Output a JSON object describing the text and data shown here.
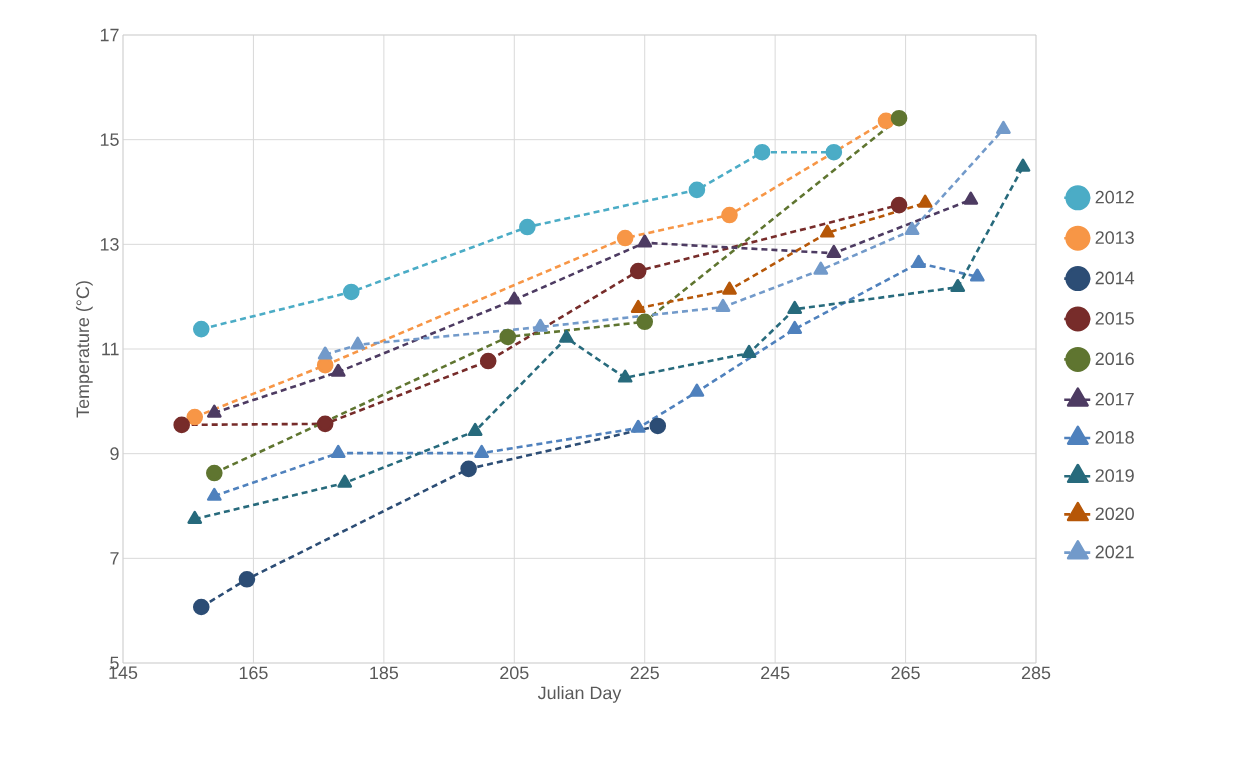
{
  "chart_data": {
    "type": "line",
    "xlabel": "Julian Day",
    "ylabel": "Temperature (°C)",
    "xlim": [
      145,
      285
    ],
    "xticks": [
      145,
      165,
      185,
      205,
      225,
      245,
      265,
      285
    ],
    "ylim": [
      5,
      17
    ],
    "yticks": [
      5,
      7,
      9,
      11,
      13,
      15,
      17
    ],
    "grid": true,
    "legend": "right",
    "line_style": "dashed",
    "series": [
      {
        "name": "2012",
        "color": "#4bacc6",
        "marker": "circle",
        "x": [
          157,
          180,
          207,
          233,
          243,
          254
        ],
        "values": [
          11.38,
          12.09,
          13.33,
          14.04,
          14.76,
          14.76
        ]
      },
      {
        "name": "2013",
        "color": "#f79646",
        "marker": "circle",
        "x": [
          156,
          176,
          222,
          238,
          262
        ],
        "values": [
          9.7,
          10.69,
          13.12,
          13.56,
          15.36
        ]
      },
      {
        "name": "2014",
        "color": "#2c4d75",
        "marker": "circle",
        "x": [
          157,
          164,
          198,
          227
        ],
        "values": [
          6.07,
          6.6,
          8.71,
          9.53
        ]
      },
      {
        "name": "2015",
        "color": "#772c2a",
        "marker": "circle",
        "x": [
          154,
          176,
          201,
          224,
          264
        ],
        "values": [
          9.55,
          9.57,
          10.77,
          12.49,
          13.75
        ]
      },
      {
        "name": "2016",
        "color": "#5f7530",
        "marker": "circle",
        "x": [
          159,
          204,
          225,
          264
        ],
        "values": [
          8.63,
          11.23,
          11.52,
          15.41
        ]
      },
      {
        "name": "2017",
        "color": "#4d3b62",
        "marker": "triangle",
        "x": [
          159,
          178,
          205,
          225,
          254,
          275
        ],
        "values": [
          9.78,
          10.56,
          11.94,
          13.03,
          12.83,
          13.85
        ]
      },
      {
        "name": "2018",
        "color": "#4f81bd",
        "marker": "triangle",
        "x": [
          159,
          178,
          200,
          224,
          233,
          248,
          267,
          276
        ],
        "values": [
          8.19,
          9.01,
          9.01,
          9.49,
          10.18,
          11.38,
          12.64,
          12.38
        ]
      },
      {
        "name": "2019",
        "color": "#276a7c",
        "marker": "triangle",
        "x": [
          156,
          179,
          199,
          213,
          222,
          241,
          248,
          273,
          283
        ],
        "values": [
          7.75,
          8.44,
          9.43,
          11.21,
          10.45,
          10.92,
          11.76,
          12.18,
          14.48
        ]
      },
      {
        "name": "2020",
        "color": "#b65708",
        "marker": "triangle",
        "x": [
          224,
          238,
          253,
          268
        ],
        "values": [
          11.78,
          12.13,
          13.22,
          13.79
        ]
      },
      {
        "name": "2021",
        "color": "#729aca",
        "marker": "triangle",
        "x": [
          176,
          181,
          209,
          237,
          252,
          266,
          280
        ],
        "values": [
          10.89,
          11.08,
          11.42,
          11.8,
          12.51,
          13.27,
          15.2
        ]
      }
    ]
  }
}
